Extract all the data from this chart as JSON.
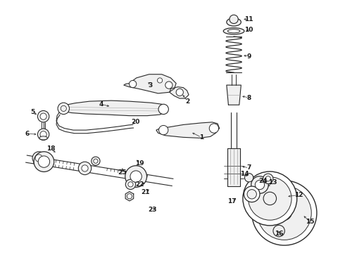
{
  "background_color": "#ffffff",
  "line_color": "#2a2a2a",
  "label_color": "#1a1a1a",
  "fig_width": 4.9,
  "fig_height": 3.6,
  "dpi": 100
}
